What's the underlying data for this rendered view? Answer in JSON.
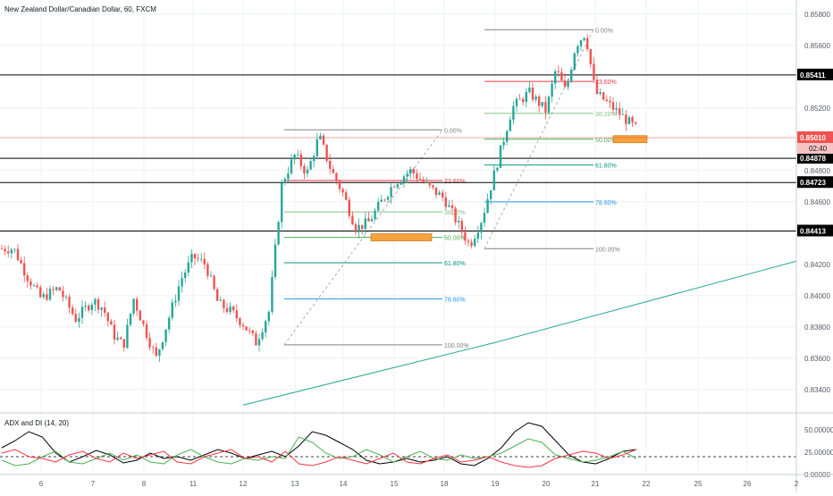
{
  "header": {
    "symbol_title": "New Zealand Dollar/Canadian Dollar, 60, FXCM",
    "indicator_title": "ADX and DI (14, 20)"
  },
  "colors": {
    "up": "#26a69a",
    "down": "#ef5350",
    "grid": "#eef0f3",
    "axis_text": "#555b66",
    "hline": "#000000",
    "current": "#ef5350",
    "adx": "#000000",
    "di_plus": "#4caf50",
    "di_minus": "#f23645",
    "ma": "#26a69a",
    "zone": "#f7a23c"
  },
  "chart_data": {
    "type": "candlestick",
    "title": "New Zealand Dollar/Canadian Dollar, 60, FXCM",
    "x_ticks": [
      "6",
      "7",
      "8",
      "11",
      "12",
      "13",
      "14",
      "15",
      "18",
      "19",
      "20",
      "21",
      "22",
      "25",
      "26",
      "2"
    ],
    "y_ticks": [
      "0.85800",
      "0.85600",
      "0.85200",
      "0.84800",
      "0.84600",
      "0.84200",
      "0.84000",
      "0.83800",
      "0.83600",
      "0.83400"
    ],
    "ylim": [
      0.8325,
      0.8589
    ],
    "price_labels": [
      {
        "value": 0.85411,
        "label": "0.85411",
        "kind": "hline"
      },
      {
        "value": 0.84878,
        "label": "0.84878",
        "kind": "hline"
      },
      {
        "value": 0.84723,
        "label": "0.84723",
        "kind": "hline"
      },
      {
        "value": 0.84413,
        "label": "0.84413",
        "kind": "hline"
      },
      {
        "value": 0.8501,
        "label": "0.85010",
        "kind": "current"
      }
    ],
    "countdown": "02:40",
    "fib_1": {
      "start_date": "13",
      "end_date": "18",
      "low": 0.83685,
      "high": 0.8506,
      "levels": [
        {
          "ratio": 0,
          "label": "0.00%"
        },
        {
          "ratio": 0.236,
          "label": "23.60%"
        },
        {
          "ratio": 0.382,
          "label": "38.20%"
        },
        {
          "ratio": 0.5,
          "label": "50.00%"
        },
        {
          "ratio": 0.618,
          "label": "61.80%"
        },
        {
          "ratio": 0.786,
          "label": "78.60%"
        },
        {
          "ratio": 1,
          "label": "100.00%"
        }
      ]
    },
    "fib_2": {
      "start_date": "19",
      "end_date": "21",
      "low": 0.843,
      "high": 0.857,
      "levels": [
        {
          "ratio": 0,
          "label": "0.00%"
        },
        {
          "ratio": 0.236,
          "label": "23.60%"
        },
        {
          "ratio": 0.382,
          "label": "38.20%"
        },
        {
          "ratio": 0.5,
          "label": "50.00%"
        },
        {
          "ratio": 0.618,
          "label": "61.80%"
        },
        {
          "ratio": 0.786,
          "label": "78.60%"
        },
        {
          "ratio": 1,
          "label": "100.00%"
        }
      ]
    },
    "price_path": [
      [
        "6",
        0.843
      ],
      [
        "6",
        0.8412
      ],
      [
        "6",
        0.8398
      ],
      [
        "7",
        0.8405
      ],
      [
        "7",
        0.8385
      ],
      [
        "7",
        0.8397
      ],
      [
        "8",
        0.8392
      ],
      [
        "8",
        0.8375
      ],
      [
        "8",
        0.8368
      ],
      [
        "8",
        0.8398
      ],
      [
        "8",
        0.838
      ],
      [
        "11",
        0.836
      ],
      [
        "11",
        0.8385
      ],
      [
        "11",
        0.841
      ],
      [
        "11",
        0.8425
      ],
      [
        "12",
        0.842
      ],
      [
        "12",
        0.8395
      ],
      [
        "12",
        0.839
      ],
      [
        "12",
        0.8382
      ],
      [
        "13",
        0.837
      ],
      [
        "13",
        0.839
      ],
      [
        "13",
        0.8472
      ],
      [
        "13",
        0.849
      ],
      [
        "14",
        0.8478
      ],
      [
        "14",
        0.8502
      ],
      [
        "14",
        0.848
      ],
      [
        "14",
        0.8465
      ],
      [
        "15",
        0.8443
      ],
      [
        "15",
        0.8447
      ],
      [
        "15",
        0.846
      ],
      [
        "15",
        0.8472
      ],
      [
        "18",
        0.848
      ],
      [
        "18",
        0.847
      ],
      [
        "18",
        0.8462
      ],
      [
        "19",
        0.8447
      ],
      [
        "19",
        0.8432
      ],
      [
        "19",
        0.845
      ],
      [
        "19",
        0.848
      ],
      [
        "20",
        0.852
      ],
      [
        "20",
        0.853
      ],
      [
        "20",
        0.8518
      ],
      [
        "21",
        0.8545
      ],
      [
        "21",
        0.853
      ],
      [
        "21",
        0.856
      ],
      [
        "21",
        0.8568
      ],
      [
        "21",
        0.853
      ],
      [
        "22",
        0.8501
      ]
    ],
    "ma_line": [
      [
        "12",
        0.833
      ],
      [
        "19",
        0.837
      ],
      [
        "2",
        0.8422
      ]
    ],
    "adx_panel": {
      "title": "ADX and DI (14, 20)",
      "y_ticks": [
        "50.00000",
        "25.00000",
        "0.00000"
      ],
      "ylim": [
        0,
        65
      ],
      "threshold": 20,
      "series": [
        {
          "key": "adx",
          "values": [
            30,
            38,
            48,
            42,
            24,
            14,
            20,
            27,
            22,
            13,
            16,
            24,
            18,
            20,
            16,
            22,
            28,
            24,
            18,
            22,
            26,
            20,
            32,
            48,
            44,
            36,
            28,
            16,
            12,
            14,
            18,
            14,
            16,
            20,
            12,
            10,
            18,
            30,
            48,
            58,
            54,
            38,
            22,
            14,
            12,
            18,
            26,
            28
          ]
        },
        {
          "key": "di_plus",
          "values": [
            16,
            10,
            12,
            20,
            26,
            14,
            12,
            18,
            24,
            16,
            22,
            14,
            12,
            22,
            28,
            20,
            14,
            12,
            18,
            16,
            20,
            18,
            42,
            36,
            24,
            18,
            20,
            28,
            22,
            14,
            20,
            26,
            18,
            16,
            22,
            18,
            20,
            24,
            32,
            40,
            36,
            22,
            18,
            14,
            16,
            20,
            26,
            18
          ]
        },
        {
          "key": "di_minus",
          "values": [
            24,
            28,
            20,
            18,
            14,
            22,
            26,
            18,
            14,
            24,
            18,
            22,
            26,
            14,
            12,
            20,
            24,
            28,
            18,
            20,
            14,
            26,
            12,
            10,
            14,
            20,
            16,
            12,
            18,
            24,
            14,
            12,
            18,
            22,
            14,
            16,
            20,
            14,
            10,
            8,
            10,
            18,
            22,
            26,
            24,
            18,
            22,
            28
          ]
        }
      ]
    }
  }
}
